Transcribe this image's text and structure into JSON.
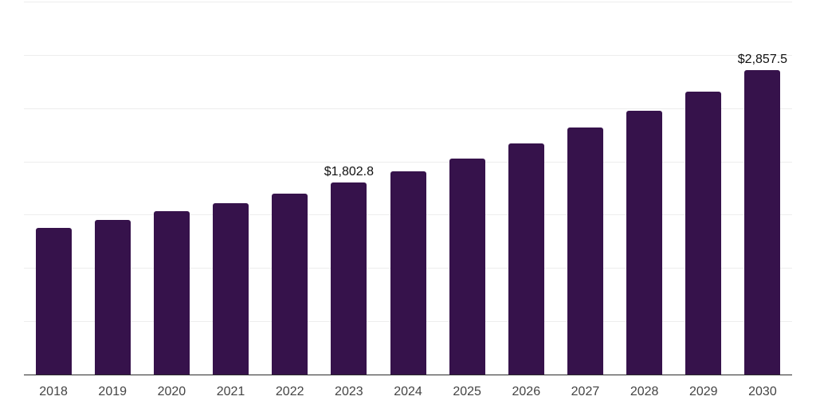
{
  "chart_data": {
    "type": "bar",
    "title": "",
    "xlabel": "",
    "ylabel": "",
    "categories": [
      "2018",
      "2019",
      "2020",
      "2021",
      "2022",
      "2023",
      "2024",
      "2025",
      "2026",
      "2027",
      "2028",
      "2029",
      "2030"
    ],
    "values": [
      1375,
      1450,
      1530,
      1605,
      1700,
      1802.8,
      1905,
      2025,
      2170,
      2315,
      2475,
      2655,
      2857.5
    ],
    "value_labels": {
      "2023": "$1,802.8",
      "2030": "$2,857.5"
    },
    "ylim": [
      0,
      3500
    ],
    "gridline_step": 500,
    "grid": true,
    "legend": "none",
    "y_tick_labels_shown": false,
    "colors": {
      "bar": "#36124B",
      "gridline": "#ededed",
      "axis_line": "#2b2b2b",
      "x_tick_label": "#444444",
      "value_label": "#111111",
      "background": "#ffffff"
    }
  }
}
